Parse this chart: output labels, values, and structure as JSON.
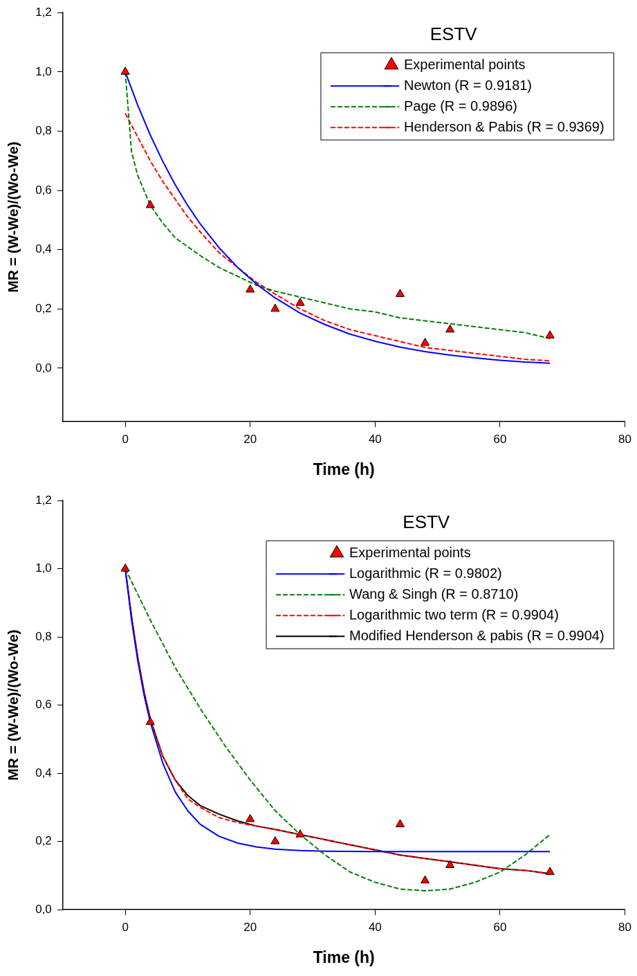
{
  "chart_data": [
    {
      "type": "line",
      "title": "ESTV",
      "xlabel": "Time (h)",
      "ylabel": "MR = (W-We)/(Wo-We)",
      "xlim": [
        -10,
        80
      ],
      "xticks": [
        0,
        20,
        40,
        60,
        80
      ],
      "ylim": [
        -0.18,
        1.2
      ],
      "yticks": [
        {
          "value": 0,
          "label": "0,0"
        },
        {
          "value": 0.2,
          "label": "0,2"
        },
        {
          "value": 0.4,
          "label": "0,4"
        },
        {
          "value": 0.6,
          "label": "0,6"
        },
        {
          "value": 0.8,
          "label": "0,8"
        },
        {
          "value": 1,
          "label": "1,0"
        },
        {
          "value": 1.2,
          "label": "1,2"
        }
      ],
      "grid": false,
      "legend": "top right",
      "series": [
        {
          "name": "Experimental points",
          "type": "scatter",
          "marker": "triangle",
          "color": "#ff0000",
          "x": [
            0,
            4,
            20,
            24,
            28,
            44,
            48,
            52,
            68
          ],
          "values": [
            1.0,
            0.55,
            0.265,
            0.2,
            0.22,
            0.25,
            0.085,
            0.13,
            0.11
          ]
        },
        {
          "name": "Newton (R = 0.9181)",
          "type": "line",
          "marker": "none",
          "line_style": "solid",
          "color": "#0000ff",
          "x": [
            0,
            2,
            4,
            6,
            8,
            10,
            12,
            15,
            18,
            21,
            24,
            28,
            32,
            36,
            40,
            44,
            48,
            52,
            56,
            60,
            64,
            68
          ],
          "values": [
            1,
            0.887,
            0.787,
            0.698,
            0.619,
            0.549,
            0.487,
            0.407,
            0.34,
            0.284,
            0.237,
            0.186,
            0.147,
            0.115,
            0.091,
            0.071,
            0.056,
            0.044,
            0.035,
            0.027,
            0.021,
            0.017
          ]
        },
        {
          "name": "Page (R = 0.9896)",
          "type": "line",
          "marker": "none",
          "line_style": "dashed",
          "color": "#008000",
          "x": [
            0,
            1,
            2,
            4,
            6,
            8,
            10,
            12,
            15,
            18,
            21,
            24,
            28,
            32,
            36,
            40,
            44,
            48,
            52,
            56,
            60,
            64,
            68
          ],
          "values": [
            1,
            0.73,
            0.65,
            0.55,
            0.49,
            0.44,
            0.41,
            0.38,
            0.34,
            0.31,
            0.28,
            0.26,
            0.24,
            0.22,
            0.2,
            0.19,
            0.17,
            0.16,
            0.15,
            0.14,
            0.13,
            0.12,
            0.1
          ]
        },
        {
          "name": "Henderson & Pabis (R = 0.9369)",
          "type": "line",
          "marker": "none",
          "line_style": "dashed",
          "color": "#ff0000",
          "x": [
            0,
            2,
            4,
            6,
            8,
            10,
            12,
            15,
            18,
            21,
            24,
            28,
            32,
            36,
            40,
            44,
            48,
            52,
            56,
            60,
            64,
            68
          ],
          "values": [
            0.86,
            0.78,
            0.7,
            0.63,
            0.57,
            0.51,
            0.46,
            0.39,
            0.34,
            0.29,
            0.25,
            0.2,
            0.16,
            0.13,
            0.11,
            0.09,
            0.07,
            0.06,
            0.05,
            0.04,
            0.03,
            0.025
          ]
        }
      ]
    },
    {
      "type": "line",
      "title": "ESTV",
      "xlabel": "Time (h)",
      "ylabel": "MR = (W-We)/(Wo-We)",
      "xlim": [
        -10,
        80
      ],
      "xticks": [
        0,
        20,
        40,
        60,
        80
      ],
      "ylim": [
        0,
        1.2
      ],
      "yticks": [
        {
          "value": 0,
          "label": "0,0"
        },
        {
          "value": 0.2,
          "label": "0,2"
        },
        {
          "value": 0.4,
          "label": "0,4"
        },
        {
          "value": 0.6,
          "label": "0,6"
        },
        {
          "value": 0.8,
          "label": "0,8"
        },
        {
          "value": 1,
          "label": "1,0"
        },
        {
          "value": 1.2,
          "label": "1,2"
        }
      ],
      "grid": false,
      "legend": "top right",
      "series": [
        {
          "name": "Experimental points",
          "type": "scatter",
          "marker": "triangle",
          "color": "#ff0000",
          "x": [
            0,
            4,
            20,
            24,
            28,
            44,
            48,
            52,
            68
          ],
          "values": [
            1.0,
            0.55,
            0.265,
            0.2,
            0.22,
            0.25,
            0.085,
            0.13,
            0.11
          ]
        },
        {
          "name": "Logarithmic (R = 0.9802)",
          "type": "line",
          "marker": "none",
          "line_style": "solid",
          "color": "#0000ff",
          "x": [
            0,
            1,
            2,
            3,
            4,
            6,
            8,
            10,
            12,
            15,
            18,
            21,
            24,
            28,
            32,
            40,
            50,
            60,
            68
          ],
          "values": [
            1,
            0.85,
            0.73,
            0.63,
            0.55,
            0.43,
            0.345,
            0.29,
            0.25,
            0.215,
            0.195,
            0.184,
            0.177,
            0.173,
            0.171,
            0.17,
            0.17,
            0.17,
            0.17
          ]
        },
        {
          "name": "Wang & Singh (R = 0.8710)",
          "type": "line",
          "marker": "none",
          "line_style": "dashed",
          "color": "#008000",
          "x": [
            0,
            4,
            8,
            12,
            16,
            20,
            24,
            28,
            32,
            36,
            40,
            44,
            48,
            52,
            56,
            60,
            64,
            68
          ],
          "values": [
            1,
            0.85,
            0.71,
            0.59,
            0.48,
            0.38,
            0.29,
            0.22,
            0.16,
            0.11,
            0.08,
            0.06,
            0.055,
            0.06,
            0.08,
            0.11,
            0.16,
            0.22
          ]
        },
        {
          "name": "Logarithmic two term (R = 0.9904)",
          "type": "line",
          "marker": "none",
          "line_style": "dashed",
          "color": "#ff0000",
          "x": [
            0,
            1,
            2,
            3,
            4,
            6,
            8,
            10,
            12,
            15,
            18,
            21,
            24,
            28,
            32,
            36,
            40,
            44,
            48,
            52,
            56,
            60,
            64,
            68
          ],
          "values": [
            1,
            0.86,
            0.74,
            0.64,
            0.56,
            0.45,
            0.38,
            0.325,
            0.3,
            0.27,
            0.255,
            0.245,
            0.235,
            0.22,
            0.205,
            0.19,
            0.175,
            0.16,
            0.15,
            0.14,
            0.13,
            0.12,
            0.115,
            0.105
          ]
        },
        {
          "name": "Modified Henderson & pabis (R = 0.9904)",
          "type": "line",
          "marker": "none",
          "line_style": "solid",
          "color": "#000000",
          "x": [
            0,
            1,
            2,
            3,
            4,
            6,
            8,
            10,
            12,
            15,
            18,
            21,
            24,
            28,
            32,
            36,
            40,
            44,
            48,
            52,
            56,
            60,
            64,
            68
          ],
          "values": [
            1,
            0.86,
            0.74,
            0.64,
            0.56,
            0.45,
            0.38,
            0.335,
            0.305,
            0.28,
            0.26,
            0.245,
            0.235,
            0.22,
            0.205,
            0.19,
            0.175,
            0.16,
            0.15,
            0.14,
            0.13,
            0.12,
            0.115,
            0.105
          ]
        }
      ]
    }
  ]
}
